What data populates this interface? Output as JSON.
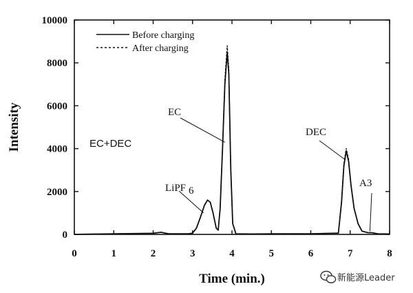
{
  "chart_data": {
    "type": "line",
    "xlabel": "Time (min.)",
    "ylabel": "Intensity",
    "xlim": [
      0,
      8
    ],
    "ylim": [
      0,
      10000
    ],
    "x_ticks": [
      "0",
      "1",
      "2",
      "3",
      "4",
      "5",
      "6",
      "7",
      "8"
    ],
    "y_ticks": [
      "0",
      "2000",
      "4000",
      "6000",
      "8000",
      "10000"
    ],
    "grid": false,
    "legend": "top-left",
    "series": [
      {
        "name": "Before charging",
        "style": "solid",
        "x": [
          0,
          1.0,
          2.0,
          2.2,
          2.3,
          2.4,
          2.9,
          3.0,
          3.1,
          3.2,
          3.3,
          3.38,
          3.45,
          3.52,
          3.6,
          3.65,
          3.7,
          3.76,
          3.82,
          3.88,
          3.92,
          3.97,
          4.02,
          4.1,
          4.5,
          5.0,
          6.0,
          6.7,
          6.78,
          6.84,
          6.9,
          6.96,
          7.02,
          7.1,
          7.2,
          7.3,
          7.45,
          7.55,
          7.7,
          8.0
        ],
        "y": [
          0,
          30,
          50,
          100,
          60,
          30,
          30,
          60,
          300,
          800,
          1350,
          1600,
          1500,
          1000,
          300,
          200,
          1200,
          4000,
          7000,
          8500,
          7500,
          3000,
          500,
          30,
          20,
          30,
          30,
          60,
          1500,
          3200,
          3900,
          3400,
          2300,
          1200,
          500,
          150,
          80,
          80,
          30,
          20
        ]
      },
      {
        "name": "After charging",
        "style": "dashed",
        "x": [
          0,
          1.0,
          2.0,
          2.2,
          2.3,
          2.4,
          2.9,
          3.0,
          3.1,
          3.2,
          3.3,
          3.38,
          3.45,
          3.52,
          3.6,
          3.65,
          3.7,
          3.76,
          3.82,
          3.88,
          3.92,
          3.97,
          4.02,
          4.1,
          4.5,
          5.0,
          6.0,
          6.7,
          6.78,
          6.84,
          6.9,
          6.96,
          7.02,
          7.1,
          7.2,
          7.3,
          7.45,
          7.55,
          7.7,
          8.0
        ],
        "y": [
          0,
          30,
          50,
          100,
          60,
          30,
          30,
          60,
          300,
          800,
          1350,
          1600,
          1500,
          1000,
          300,
          200,
          1200,
          4100,
          7200,
          8800,
          7700,
          3000,
          500,
          30,
          20,
          30,
          30,
          60,
          1600,
          3300,
          4000,
          3500,
          2300,
          1200,
          500,
          150,
          80,
          80,
          30,
          20
        ]
      }
    ],
    "annotations": [
      {
        "text": "LiPF",
        "sub": "6",
        "x": 3.28,
        "y": 1000
      },
      {
        "text": "EC",
        "x": 3.82,
        "y": 4300
      },
      {
        "text": "DEC",
        "x": 6.86,
        "y": 3500
      },
      {
        "text": "A3",
        "x": 7.5,
        "y": 150
      }
    ]
  },
  "overlay_label": "EC+DEC",
  "watermark": "新能源Leader",
  "colors": {
    "line": "#111111",
    "overlay_label": "#e02020",
    "watermark_icon": "#333333"
  },
  "icons": [
    "wechat-icon"
  ]
}
